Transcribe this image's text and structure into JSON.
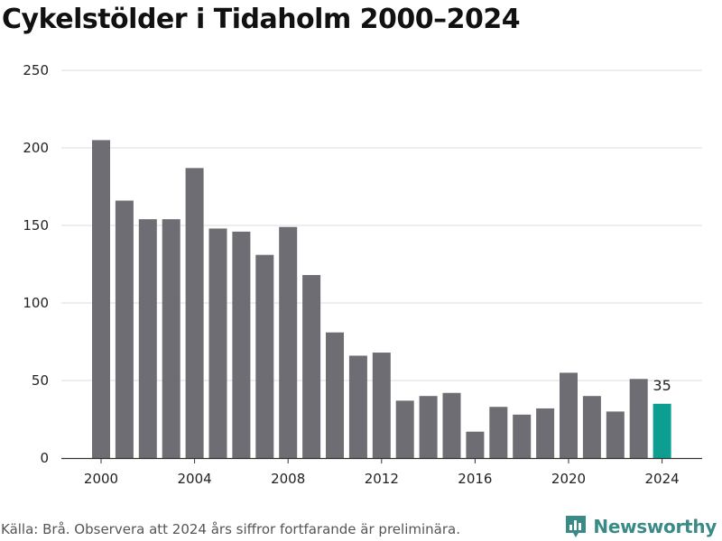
{
  "title": "Cykelstölder i Tidaholm 2000–2024",
  "source": "Källa: Brå. Observera att 2024 års siffror fortfarande är preliminära.",
  "brand": {
    "name": "Newsworthy",
    "icon": "newsworthy-logo-icon",
    "color": "#3a8a86"
  },
  "colors": {
    "bar": "#6e6d73",
    "highlight": "#0b9e91",
    "grid": "#dddddd"
  },
  "chart_data": {
    "type": "bar",
    "title": "Cykelstölder i Tidaholm 2000–2024",
    "xlabel": "",
    "ylabel": "",
    "categories": [
      "2000",
      "2001",
      "2002",
      "2003",
      "2004",
      "2005",
      "2006",
      "2007",
      "2008",
      "2009",
      "2010",
      "2011",
      "2012",
      "2013",
      "2014",
      "2015",
      "2016",
      "2017",
      "2018",
      "2019",
      "2020",
      "2021",
      "2022",
      "2023",
      "2024"
    ],
    "values": [
      205,
      166,
      154,
      154,
      187,
      148,
      146,
      131,
      149,
      118,
      81,
      66,
      68,
      37,
      40,
      42,
      17,
      33,
      28,
      32,
      55,
      40,
      30,
      51,
      35
    ],
    "highlight": "2024",
    "data_labels": [
      {
        "category": "2024",
        "text": "35"
      }
    ],
    "ylim": [
      0,
      250
    ],
    "yticks": [
      0,
      50,
      100,
      150,
      200,
      250
    ],
    "xticks": [
      "2000",
      "2004",
      "2008",
      "2012",
      "2016",
      "2020",
      "2024"
    ],
    "grid": true
  }
}
